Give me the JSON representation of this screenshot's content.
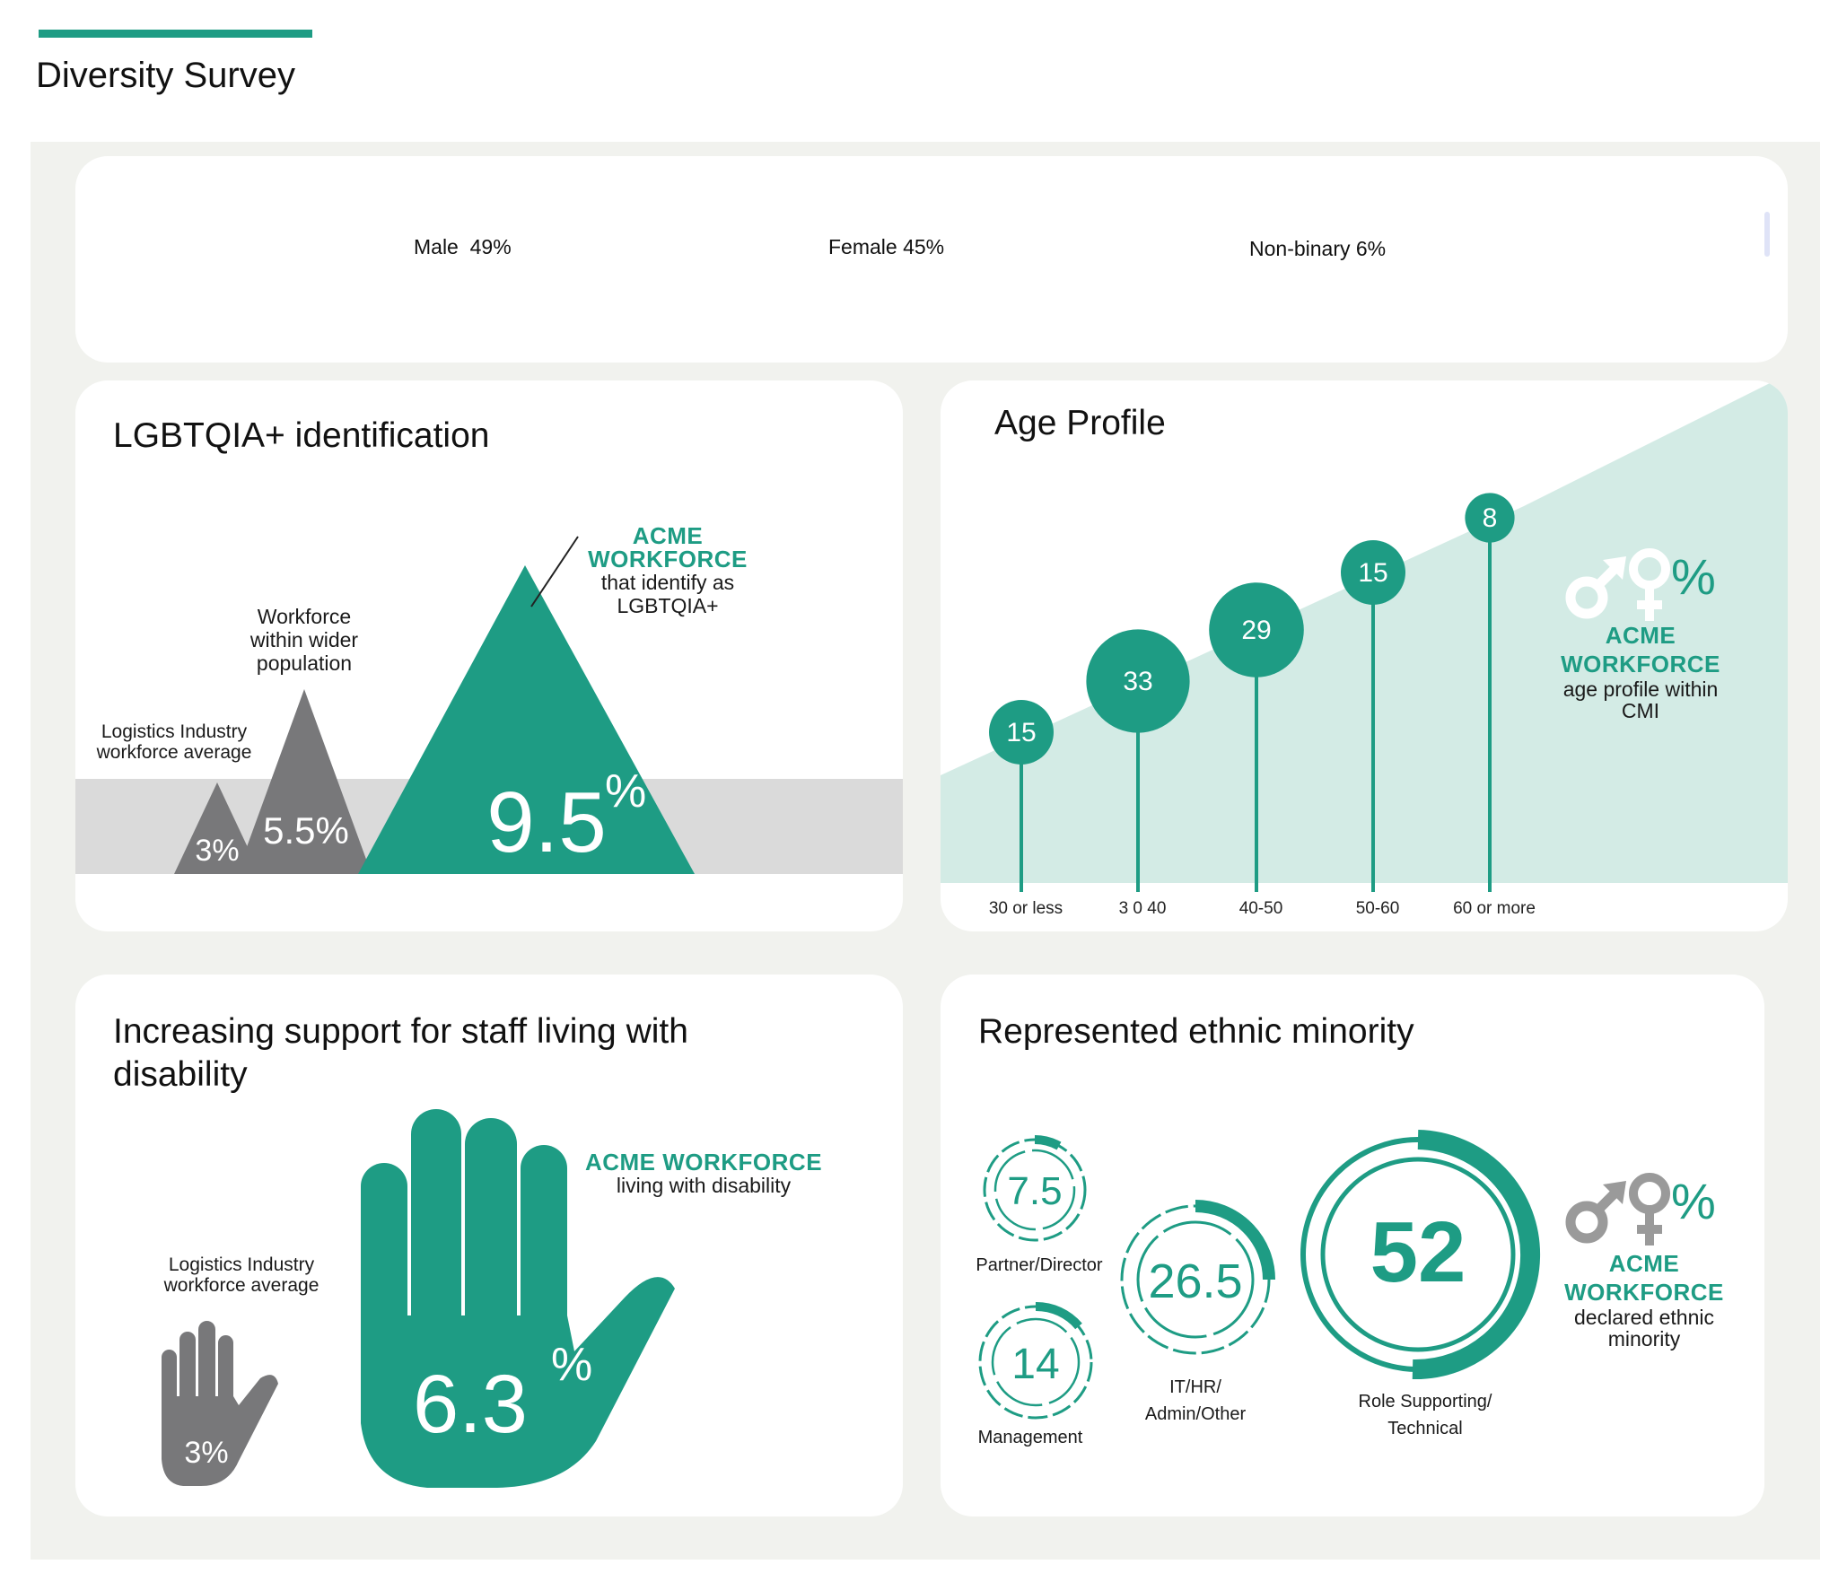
{
  "header": {
    "title": "Diversity Survey",
    "accent": "#1e9c84"
  },
  "colors": {
    "teal": "#1e9c84",
    "teal_light": "#d3ebe5",
    "gray": "#78787a",
    "gray_band": "#dadada"
  },
  "gender": {
    "male": "Male  49%",
    "female": "Female 45%",
    "nonbinary": "Non-binary 6%"
  },
  "lgbt": {
    "title": "LGBTQIA+ identification",
    "callout_head": "ACME WORKFORCE",
    "callout_l1": "that identify as",
    "callout_l2": "LGBTQIA+",
    "pop_l1": "Workforce",
    "pop_l2": "within wider",
    "pop_l3": "population",
    "ind_l1": "Logistics Industry",
    "ind_l2": "workforce average",
    "tri_small": "3%",
    "tri_mid": "5.5%",
    "tri_big_num": "9.5",
    "tri_big_pct": "%"
  },
  "age": {
    "title": "Age Profile",
    "icon": "male-female-symbols-icon",
    "icon_pct": "%",
    "side_head1": "ACME",
    "side_head2": "WORKFORCE",
    "side_l1": "age profile within",
    "side_l2": "CMI"
  },
  "chart_data": {
    "type": "scatter",
    "title": "Age Profile",
    "categories": [
      "30 or less",
      "3 0 40",
      "40-50",
      "50-60",
      "60 or more"
    ],
    "values": [
      15,
      33,
      29,
      15,
      8
    ],
    "unit": "%"
  },
  "disability": {
    "title_l1": "Increasing support for staff living with",
    "title_l2": "disability",
    "callout_head": "ACME WORKFORCE",
    "callout_l1": "living with disability",
    "ind_l1": "Logistics Industry",
    "ind_l2": "workforce average",
    "small_hand": "3%",
    "big_num": "6.3",
    "big_pct": "%",
    "hand_icon": "hand-icon"
  },
  "ethnic": {
    "title": "Represented ethnic minority",
    "rings": [
      {
        "value": "7.5",
        "label": "Partner/Director"
      },
      {
        "value": "14",
        "label": "Management"
      },
      {
        "value": "26.5",
        "label_l1": "IT/HR/",
        "label_l2": "Admin/Other"
      },
      {
        "value": "52",
        "label_l1": "Role Supporting/",
        "label_l2": "Technical"
      }
    ],
    "icon_pct": "%",
    "side_head1": "ACME",
    "side_head2": "WORKFORCE",
    "side_l1": "declared ethnic",
    "side_l2": "minority"
  }
}
